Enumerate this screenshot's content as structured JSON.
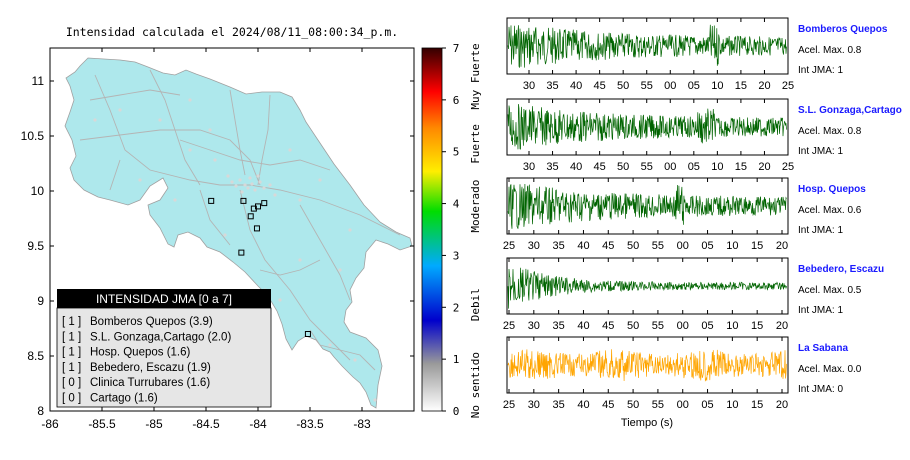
{
  "map": {
    "title": "Intensidad calculada el 2024/08/11_08:00:34_p.m.",
    "x_ticks": [
      "-86",
      "-85.5",
      "-85",
      "-84.5",
      "-84",
      "-83.5",
      "-83"
    ],
    "y_ticks": [
      "11",
      "10.5",
      "10",
      "9.5",
      "9",
      "8.5",
      "8"
    ],
    "xlim": [
      -86,
      -82.5
    ],
    "ylim": [
      8,
      11.3
    ],
    "land_color": "#aee8ec",
    "stations": [
      {
        "lon": -84.45,
        "lat": 9.91
      },
      {
        "lon": -84.14,
        "lat": 9.91
      },
      {
        "lon": -84.04,
        "lat": 9.84
      },
      {
        "lon": -84.0,
        "lat": 9.86
      },
      {
        "lon": -83.94,
        "lat": 9.89
      },
      {
        "lon": -84.07,
        "lat": 9.77
      },
      {
        "lon": -84.01,
        "lat": 9.66
      },
      {
        "lon": -84.16,
        "lat": 9.44
      },
      {
        "lon": -83.52,
        "lat": 8.7
      }
    ]
  },
  "legend": {
    "title": "INTENSIDAD JMA [0 a 7]",
    "items": [
      {
        "code": "[ 1 ]",
        "label": "Bomberos Quepos (3.9)"
      },
      {
        "code": "[ 1 ]",
        "label": "S.L. Gonzaga,Cartago (2.0)"
      },
      {
        "code": "[ 1 ]",
        "label": "Hosp. Quepos (1.6)"
      },
      {
        "code": "[ 1 ]",
        "label": "Bebedero, Escazu (1.9)"
      },
      {
        "code": "[ 0 ]",
        "label": "Clinica Turrubares (1.6)"
      },
      {
        "code": "[ 0 ]",
        "label": "Cartago (1.6)"
      }
    ]
  },
  "colorbar": {
    "ticks": [
      "0",
      "1",
      "2",
      "3",
      "4",
      "5",
      "6",
      "7"
    ],
    "categories": [
      "No sentido",
      "Debil",
      "Moderado",
      "Fuerte",
      "Muy Fuerte"
    ],
    "colors": [
      "#ffffff",
      "#999999",
      "#0000cc",
      "#00aaff",
      "#00dd00",
      "#ffee00",
      "#ff8800",
      "#ff0000",
      "#330000"
    ]
  },
  "chart_data": [
    {
      "type": "line",
      "station": "Bomberos Quepos",
      "accel_label": "Acel. Max. 0.8",
      "jma_label": "Int JMA: 1",
      "color": "#006400",
      "x_ticks": [
        "30",
        "35",
        "40",
        "45",
        "50",
        "55",
        "00",
        "05",
        "10",
        "15",
        "20",
        "25"
      ],
      "amplitude": 0.8
    },
    {
      "type": "line",
      "station": "S.L. Gonzaga,Cartago",
      "accel_label": "Acel. Max. 0.8",
      "jma_label": "Int JMA: 1",
      "color": "#006400",
      "x_ticks": [
        "30",
        "35",
        "40",
        "45",
        "50",
        "55",
        "00",
        "05",
        "10",
        "15",
        "20",
        "25"
      ],
      "amplitude": 0.8
    },
    {
      "type": "line",
      "station": "Hosp. Quepos",
      "accel_label": "Acel. Max. 0.6",
      "jma_label": "Int JMA: 1",
      "color": "#006400",
      "x_ticks": [
        "25",
        "30",
        "35",
        "40",
        "45",
        "50",
        "55",
        "00",
        "05",
        "10",
        "15",
        "20"
      ],
      "amplitude": 0.6
    },
    {
      "type": "line",
      "station": "Bebedero, Escazu",
      "accel_label": "Acel. Max. 0.5",
      "jma_label": "Int JMA: 1",
      "color": "#006400",
      "x_ticks": [
        "25",
        "30",
        "35",
        "40",
        "45",
        "50",
        "55",
        "00",
        "05",
        "10",
        "15",
        "20"
      ],
      "amplitude": 0.5
    },
    {
      "type": "line",
      "station": "La Sabana",
      "accel_label": "Acel. Max. 0.0",
      "jma_label": "Int JMA: 0",
      "color": "#ffa500",
      "x_ticks": [
        "25",
        "30",
        "35",
        "40",
        "45",
        "50",
        "55",
        "00",
        "05",
        "10",
        "15",
        "20"
      ],
      "amplitude": 0.0
    }
  ],
  "waveform_xlabel": "Tiempo (s)"
}
